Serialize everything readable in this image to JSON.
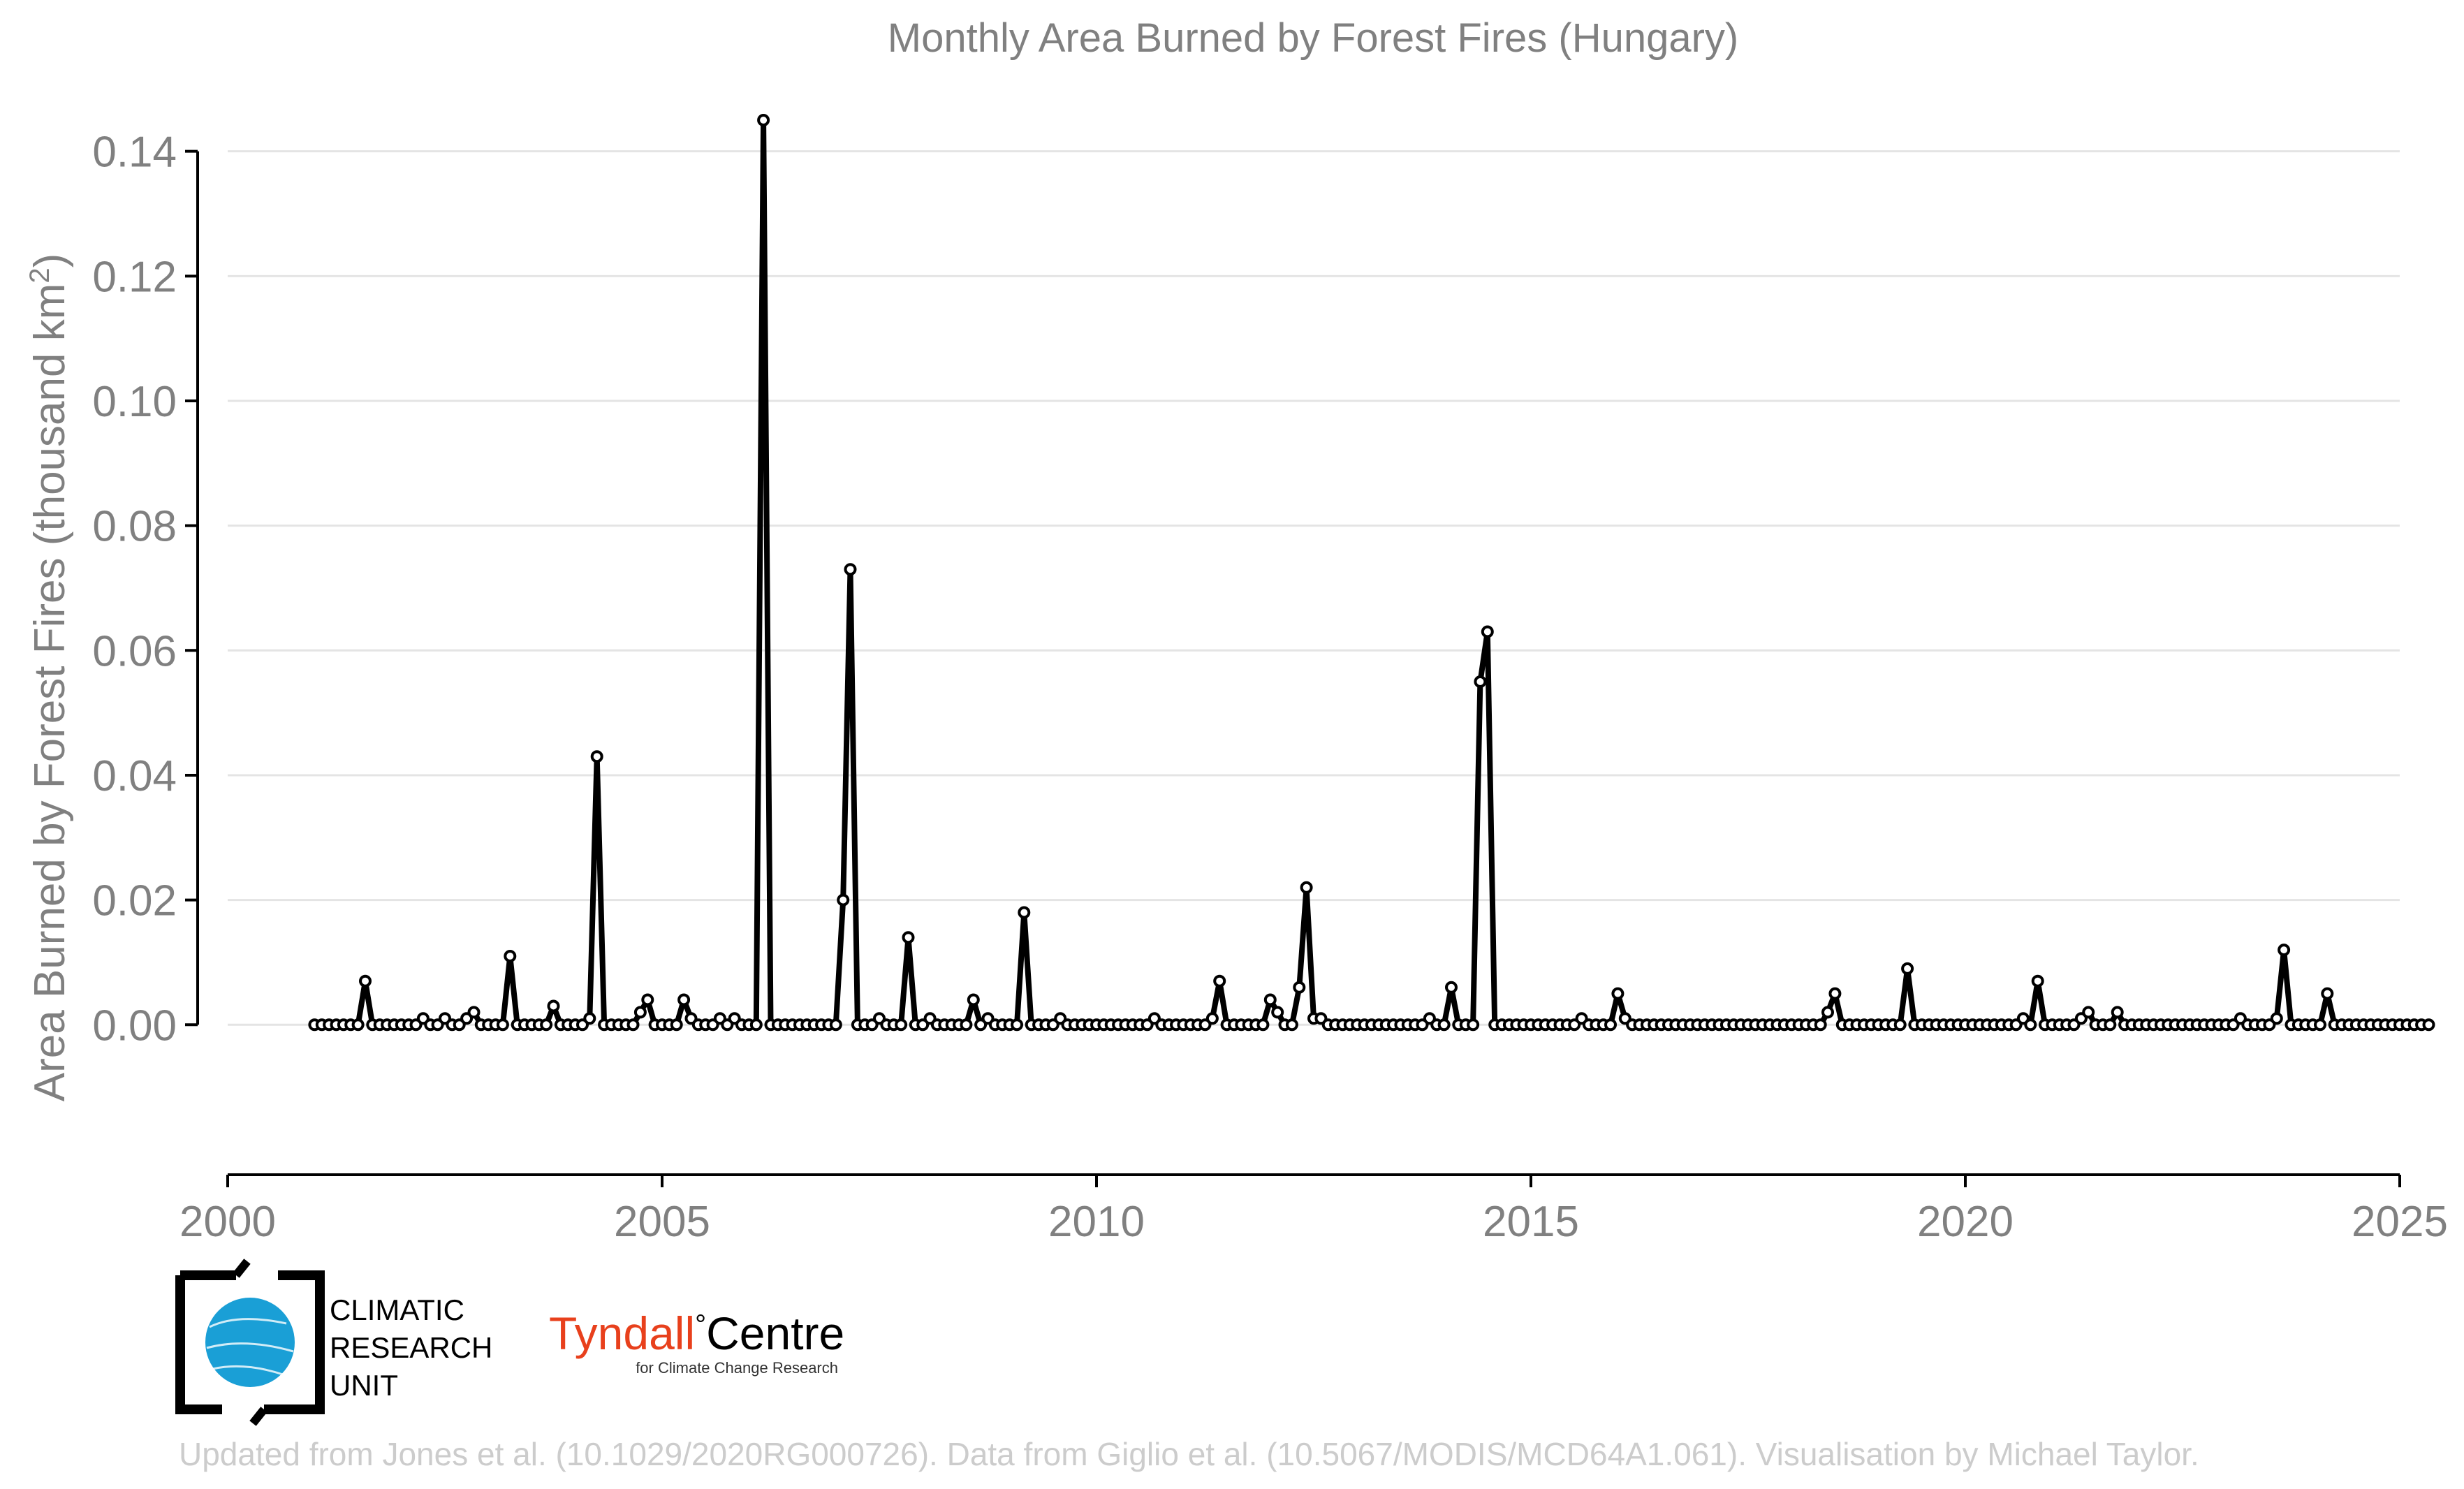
{
  "chart_data": {
    "type": "line",
    "title": "Monthly Area Burned by Forest Fires (Hungary)",
    "ylabel_main": "Area Burned by Forest Fires (thousand km",
    "ylabel_sup": "2",
    "ylabel_close": ")",
    "xlabel": "",
    "xlim": [
      2000,
      2025
    ],
    "ylim": [
      -0.0115,
      0.145
    ],
    "x_ticks": [
      2000,
      2005,
      2010,
      2015,
      2020,
      2025
    ],
    "y_ticks": [
      0.0,
      0.02,
      0.04,
      0.06,
      0.08,
      0.1,
      0.12,
      0.14
    ],
    "y_tick_labels": [
      "0.00",
      "0.02",
      "0.04",
      "0.06",
      "0.08",
      "0.10",
      "0.12",
      "0.14"
    ],
    "grid": true,
    "series_color": "#000000",
    "series": [
      {
        "start": "2001-01",
        "frequency": "monthly",
        "values": [
          0,
          0,
          0,
          0,
          0,
          0,
          0,
          0.007,
          0,
          0,
          0,
          0,
          0,
          0,
          0,
          0.001,
          0,
          0,
          0.001,
          0,
          0,
          0.001,
          0.002,
          0,
          0,
          0,
          0,
          0.011,
          0,
          0,
          0,
          0,
          0,
          0.003,
          0,
          0,
          0,
          0,
          0.001,
          0.043,
          0,
          0,
          0,
          0,
          0,
          0.002,
          0.004,
          0,
          0,
          0,
          0,
          0.004,
          0.001,
          0,
          0,
          0,
          0.001,
          0,
          0.001,
          0,
          0,
          0,
          0.145,
          0,
          0,
          0,
          0,
          0,
          0,
          0,
          0,
          0,
          0,
          0.02,
          0.073,
          0,
          0,
          0,
          0.001,
          0,
          0,
          0,
          0.014,
          0,
          0,
          0.001,
          0,
          0,
          0,
          0,
          0,
          0.004,
          0,
          0.001,
          0,
          0,
          0,
          0,
          0.018,
          0,
          0,
          0,
          0,
          0.001,
          0,
          0,
          0,
          0,
          0,
          0,
          0,
          0,
          0,
          0,
          0,
          0,
          0.001,
          0,
          0,
          0,
          0,
          0,
          0,
          0,
          0.001,
          0.007,
          0,
          0,
          0,
          0,
          0,
          0,
          0.004,
          0.002,
          0,
          0,
          0.006,
          0.022,
          0.001,
          0.001,
          0,
          0,
          0,
          0,
          0,
          0,
          0,
          0,
          0,
          0,
          0,
          0,
          0,
          0,
          0.001,
          0,
          0,
          0.006,
          0,
          0,
          0,
          0.055,
          0.063,
          0,
          0,
          0,
          0,
          0,
          0,
          0,
          0,
          0,
          0,
          0,
          0,
          0.001,
          0,
          0,
          0,
          0,
          0.005,
          0.001,
          0,
          0,
          0,
          0,
          0,
          0,
          0,
          0,
          0,
          0,
          0,
          0,
          0,
          0,
          0,
          0,
          0,
          0,
          0,
          0,
          0,
          0,
          0,
          0,
          0,
          0,
          0,
          0.002,
          0.005,
          0,
          0,
          0,
          0,
          0,
          0,
          0,
          0,
          0,
          0.009,
          0,
          0,
          0,
          0,
          0,
          0,
          0,
          0,
          0,
          0,
          0,
          0,
          0,
          0,
          0,
          0.001,
          0,
          0.007,
          0,
          0,
          0,
          0,
          0,
          0.001,
          0.002,
          0,
          0,
          0,
          0.002,
          0,
          0,
          0,
          0,
          0,
          0,
          0,
          0,
          0,
          0,
          0,
          0,
          0,
          0,
          0,
          0,
          0.001,
          0,
          0,
          0,
          0,
          0.001,
          0.012,
          0,
          0,
          0,
          0,
          0,
          0.005,
          0,
          0,
          0,
          0,
          0,
          0,
          0,
          0,
          0,
          0,
          0,
          0,
          0,
          0
        ]
      }
    ]
  },
  "logos": {
    "cru_lines": [
      "CLIMATIC",
      "RESEARCH",
      "UNIT"
    ],
    "cru_globe_color": "#1a9fd6",
    "tyndall_main": "Tyndall",
    "tyndall_degree": "°",
    "tyndall_centre": "Centre",
    "tyndall_sub": "for Climate Change Research",
    "tyndall_color": "#e8401c"
  },
  "footer": "Updated from Jones et al. (10.1029/2020RG000726). Data from Giglio et al. (10.5067/MODIS/MCD64A1.061). Visualisation by Michael Taylor."
}
